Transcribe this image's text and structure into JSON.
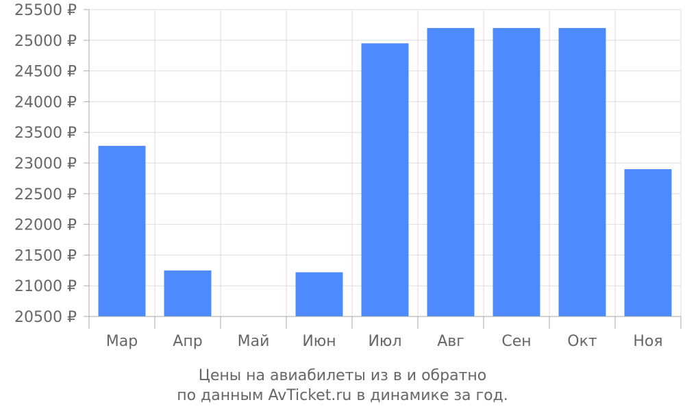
{
  "chart_data": {
    "type": "bar",
    "categories": [
      "Мар",
      "Апр",
      "Май",
      "Июн",
      "Июл",
      "Авг",
      "Сен",
      "Окт",
      "Ноя"
    ],
    "values": [
      23280,
      21250,
      20500,
      21220,
      24950,
      25200,
      25200,
      25200,
      22900
    ],
    "ylim": [
      20500,
      25500
    ],
    "yticks": [
      "20500 ₽",
      "21000 ₽",
      "21500 ₽",
      "22000 ₽",
      "22500 ₽",
      "23000 ₽",
      "23500 ₽",
      "24000 ₽",
      "24500 ₽",
      "25000 ₽",
      "25500 ₽"
    ],
    "caption_line1": "Цены на авиабилеты из  в  и обратно",
    "caption_line2": "по данным AvTicket.ru в динамике за год.",
    "grid": true,
    "bar_color": "#4d8afd",
    "grid_color": "#dddddd",
    "axis_color": "#aaaaaa",
    "text_color": "#666666"
  }
}
